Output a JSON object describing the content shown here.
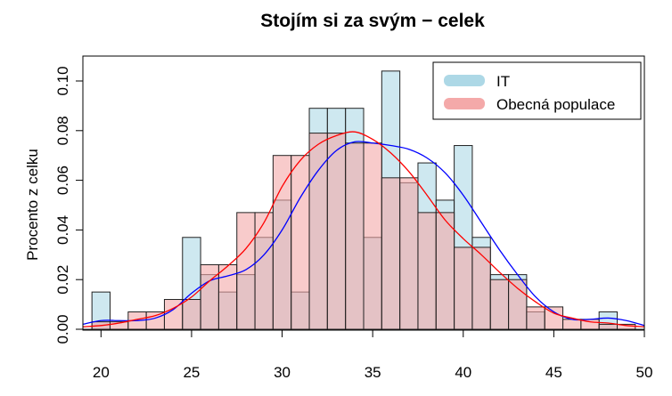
{
  "chart_data": {
    "type": "bar",
    "title": "Stojím si za svým − celek",
    "xlabel": "",
    "ylabel": "Procento z celku",
    "xlim": [
      19,
      50
    ],
    "ylim": [
      0,
      0.105
    ],
    "x_ticks": [
      20,
      25,
      30,
      35,
      40,
      45,
      50
    ],
    "y_ticks": [
      0.0,
      0.02,
      0.04,
      0.06,
      0.08,
      0.1
    ],
    "y_tick_labels": [
      "0.00",
      "0.02",
      "0.04",
      "0.06",
      "0.08",
      "0.10"
    ],
    "bin_width": 1,
    "legend": {
      "position": "top-right"
    },
    "series": [
      {
        "name": "IT",
        "color": "#add8e6",
        "line_color": "#0000ff",
        "bins": [
          {
            "x": 20,
            "y": 0.015
          },
          {
            "x": 21,
            "y": 0.0
          },
          {
            "x": 22,
            "y": 0.0
          },
          {
            "x": 23,
            "y": 0.0
          },
          {
            "x": 24,
            "y": 0.0
          },
          {
            "x": 25,
            "y": 0.037
          },
          {
            "x": 26,
            "y": 0.022
          },
          {
            "x": 27,
            "y": 0.015
          },
          {
            "x": 28,
            "y": 0.022
          },
          {
            "x": 29,
            "y": 0.037
          },
          {
            "x": 30,
            "y": 0.052
          },
          {
            "x": 31,
            "y": 0.015
          },
          {
            "x": 32,
            "y": 0.089
          },
          {
            "x": 33,
            "y": 0.089
          },
          {
            "x": 34,
            "y": 0.089
          },
          {
            "x": 35,
            "y": 0.037
          },
          {
            "x": 36,
            "y": 0.104
          },
          {
            "x": 37,
            "y": 0.059
          },
          {
            "x": 38,
            "y": 0.067
          },
          {
            "x": 39,
            "y": 0.052
          },
          {
            "x": 40,
            "y": 0.074
          },
          {
            "x": 41,
            "y": 0.037
          },
          {
            "x": 42,
            "y": 0.022
          },
          {
            "x": 43,
            "y": 0.022
          },
          {
            "x": 44,
            "y": 0.007
          },
          {
            "x": 45,
            "y": 0.0
          },
          {
            "x": 46,
            "y": 0.0
          },
          {
            "x": 47,
            "y": 0.0
          },
          {
            "x": 48,
            "y": 0.007
          },
          {
            "x": 49,
            "y": 0.0
          }
        ],
        "density": [
          [
            19,
            0.002
          ],
          [
            20,
            0.0035
          ],
          [
            21,
            0.0035
          ],
          [
            22,
            0.0035
          ],
          [
            23,
            0.0045
          ],
          [
            24,
            0.008
          ],
          [
            25,
            0.0145
          ],
          [
            26,
            0.0195
          ],
          [
            27,
            0.0215
          ],
          [
            28,
            0.024
          ],
          [
            29,
            0.03
          ],
          [
            30,
            0.04
          ],
          [
            31,
            0.053
          ],
          [
            32,
            0.064
          ],
          [
            33,
            0.072
          ],
          [
            34,
            0.0755
          ],
          [
            35,
            0.075
          ],
          [
            36,
            0.074
          ],
          [
            37,
            0.0725
          ],
          [
            38,
            0.069
          ],
          [
            39,
            0.063
          ],
          [
            40,
            0.054
          ],
          [
            41,
            0.043
          ],
          [
            42,
            0.032
          ],
          [
            43,
            0.022
          ],
          [
            44,
            0.013
          ],
          [
            45,
            0.007
          ],
          [
            46,
            0.004
          ],
          [
            47,
            0.004
          ],
          [
            48,
            0.0045
          ],
          [
            49,
            0.0035
          ],
          [
            50,
            0.0015
          ]
        ]
      },
      {
        "name": "Obecná populace",
        "color": "#f4a9a9",
        "line_color": "#ff0000",
        "bins": [
          {
            "x": 20,
            "y": 0.003
          },
          {
            "x": 21,
            "y": 0.003
          },
          {
            "x": 22,
            "y": 0.007
          },
          {
            "x": 23,
            "y": 0.007
          },
          {
            "x": 24,
            "y": 0.012
          },
          {
            "x": 25,
            "y": 0.012
          },
          {
            "x": 26,
            "y": 0.026
          },
          {
            "x": 27,
            "y": 0.026
          },
          {
            "x": 28,
            "y": 0.047
          },
          {
            "x": 29,
            "y": 0.047
          },
          {
            "x": 30,
            "y": 0.07
          },
          {
            "x": 31,
            "y": 0.07
          },
          {
            "x": 32,
            "y": 0.079
          },
          {
            "x": 33,
            "y": 0.079
          },
          {
            "x": 34,
            "y": 0.075
          },
          {
            "x": 35,
            "y": 0.075
          },
          {
            "x": 36,
            "y": 0.061
          },
          {
            "x": 37,
            "y": 0.061
          },
          {
            "x": 38,
            "y": 0.047
          },
          {
            "x": 39,
            "y": 0.047
          },
          {
            "x": 40,
            "y": 0.033
          },
          {
            "x": 41,
            "y": 0.033
          },
          {
            "x": 42,
            "y": 0.02
          },
          {
            "x": 43,
            "y": 0.02
          },
          {
            "x": 44,
            "y": 0.009
          },
          {
            "x": 45,
            "y": 0.009
          },
          {
            "x": 46,
            "y": 0.004
          },
          {
            "x": 47,
            "y": 0.004
          },
          {
            "x": 48,
            "y": 0.002
          },
          {
            "x": 49,
            "y": 0.002
          }
        ],
        "density": [
          [
            19,
            0.001
          ],
          [
            20,
            0.0015
          ],
          [
            21,
            0.0025
          ],
          [
            22,
            0.004
          ],
          [
            23,
            0.0055
          ],
          [
            24,
            0.0085
          ],
          [
            25,
            0.013
          ],
          [
            26,
            0.0195
          ],
          [
            27,
            0.0255
          ],
          [
            28,
            0.0325
          ],
          [
            29,
            0.043
          ],
          [
            30,
            0.0575
          ],
          [
            31,
            0.068
          ],
          [
            32,
            0.0745
          ],
          [
            33,
            0.078
          ],
          [
            34,
            0.0795
          ],
          [
            35,
            0.0765
          ],
          [
            36,
            0.071
          ],
          [
            37,
            0.0635
          ],
          [
            38,
            0.054
          ],
          [
            39,
            0.044
          ],
          [
            40,
            0.0365
          ],
          [
            41,
            0.03
          ],
          [
            42,
            0.023
          ],
          [
            43,
            0.0165
          ],
          [
            44,
            0.011
          ],
          [
            45,
            0.0065
          ],
          [
            46,
            0.0045
          ],
          [
            47,
            0.003
          ],
          [
            48,
            0.0025
          ],
          [
            49,
            0.0015
          ],
          [
            50,
            0.001
          ]
        ]
      }
    ]
  }
}
